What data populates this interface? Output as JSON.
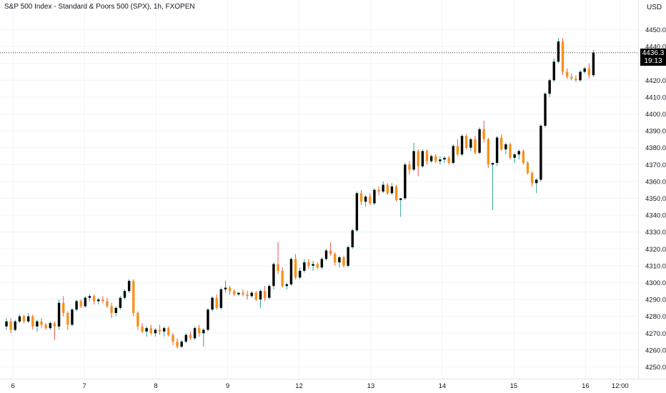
{
  "header": {
    "title": "S&P 500 Index - Standard & Poors 500 (SPX), 1h, FXOPEN",
    "currency": "USD"
  },
  "price_tag": {
    "price": "4436.3",
    "countdown": "19:13"
  },
  "colors": {
    "up": "#000000",
    "down": "#f7931a",
    "wick_up": "#26a69a",
    "wick_down": "#ef5350",
    "grid": "#f0f3fa",
    "axis_text": "#131722",
    "crosshair": "#131722"
  },
  "chart_data": {
    "type": "candlestick",
    "title": "S&P 500 Index - Standard & Poors 500 (SPX), 1h, FXOPEN",
    "xlabel": "",
    "ylabel": "",
    "ylim": [
      4247,
      4456
    ],
    "y_ticks": [
      4250,
      4260,
      4270,
      4280,
      4290,
      4300,
      4310,
      4320,
      4330,
      4340,
      4350,
      4360,
      4370,
      4380,
      4390,
      4400,
      4410,
      4420,
      4430,
      4440,
      4450
    ],
    "x_ticks": [
      {
        "label": "6",
        "index": 1.5
      },
      {
        "label": "7",
        "index": 17.8
      },
      {
        "label": "8",
        "index": 34.1
      },
      {
        "label": "9",
        "index": 50.5
      },
      {
        "label": "12",
        "index": 66.8
      },
      {
        "label": "13",
        "index": 83.2
      },
      {
        "label": "14",
        "index": 99.5
      },
      {
        "label": "15",
        "index": 115.8
      },
      {
        "label": "16",
        "index": 132.2
      },
      {
        "label": "12:00",
        "index": 140.1
      }
    ],
    "last_price": 4436.3,
    "grid": true,
    "candles": [
      [
        4274,
        4279,
        4272,
        4277
      ],
      [
        4277,
        4279,
        4270,
        4272
      ],
      [
        4272,
        4278,
        4271,
        4277
      ],
      [
        4277,
        4281,
        4276,
        4280
      ],
      [
        4280,
        4281,
        4276,
        4277
      ],
      [
        4277,
        4282,
        4276,
        4280
      ],
      [
        4280,
        4281,
        4272,
        4274
      ],
      [
        4274,
        4278,
        4271,
        4277
      ],
      [
        4277,
        4279,
        4273,
        4275
      ],
      [
        4275,
        4276,
        4272,
        4273
      ],
      [
        4273,
        4277,
        4272,
        4276
      ],
      [
        4276,
        4277,
        4266,
        4274
      ],
      [
        4274,
        4290,
        4272,
        4288
      ],
      [
        4288,
        4292,
        4280,
        4282
      ],
      [
        4282,
        4283,
        4272,
        4275
      ],
      [
        4275,
        4285,
        4274,
        4284
      ],
      [
        4284,
        4290,
        4283,
        4289
      ],
      [
        4289,
        4290,
        4285,
        4286
      ],
      [
        4286,
        4292,
        4285,
        4291
      ],
      [
        4291,
        4293,
        4289,
        4292
      ],
      [
        4292,
        4293,
        4287,
        4289
      ],
      [
        4289,
        4291,
        4287,
        4290
      ],
      [
        4290,
        4292,
        4288,
        4289
      ],
      [
        4289,
        4291,
        4285,
        4286
      ],
      [
        4286,
        4288,
        4279,
        4282
      ],
      [
        4282,
        4286,
        4280,
        4285
      ],
      [
        4285,
        4292,
        4284,
        4291
      ],
      [
        4291,
        4296,
        4290,
        4295
      ],
      [
        4295,
        4302,
        4294,
        4301
      ],
      [
        4301,
        4302,
        4280,
        4282
      ],
      [
        4282,
        4283,
        4272,
        4274
      ],
      [
        4274,
        4276,
        4270,
        4271
      ],
      [
        4271,
        4274,
        4268,
        4273
      ],
      [
        4273,
        4275,
        4269,
        4270
      ],
      [
        4270,
        4273,
        4268,
        4272
      ],
      [
        4272,
        4275,
        4269,
        4271
      ],
      [
        4271,
        4274,
        4268,
        4273
      ],
      [
        4273,
        4274,
        4268,
        4269
      ],
      [
        4269,
        4270,
        4263,
        4265
      ],
      [
        4265,
        4267,
        4261,
        4262
      ],
      [
        4262,
        4266,
        4261,
        4265
      ],
      [
        4265,
        4270,
        4264,
        4269
      ],
      [
        4269,
        4271,
        4266,
        4267
      ],
      [
        4267,
        4274,
        4266,
        4273
      ],
      [
        4273,
        4275,
        4268,
        4270
      ],
      [
        4270,
        4273,
        4262,
        4272
      ],
      [
        4272,
        4285,
        4271,
        4284
      ],
      [
        4284,
        4292,
        4283,
        4291
      ],
      [
        4291,
        4293,
        4284,
        4285
      ],
      [
        4285,
        4297,
        4284,
        4296
      ],
      [
        4296,
        4301,
        4294,
        4297
      ],
      [
        4297,
        4298,
        4293,
        4295
      ],
      [
        4295,
        4296,
        4292,
        4293
      ],
      [
        4293,
        4294,
        4292,
        4294
      ],
      [
        4294,
        4296,
        4292,
        4293
      ],
      [
        4293,
        4295,
        4290,
        4292
      ],
      [
        4292,
        4295,
        4291,
        4294
      ],
      [
        4294,
        4295,
        4289,
        4290
      ],
      [
        4290,
        4296,
        4285,
        4295
      ],
      [
        4295,
        4298,
        4289,
        4291
      ],
      [
        4291,
        4299,
        4290,
        4298
      ],
      [
        4298,
        4312,
        4296,
        4311
      ],
      [
        4311,
        4324,
        4305,
        4307
      ],
      [
        4307,
        4309,
        4297,
        4298
      ],
      [
        4298,
        4300,
        4296,
        4299
      ],
      [
        4299,
        4315,
        4298,
        4314
      ],
      [
        4314,
        4317,
        4302,
        4303
      ],
      [
        4303,
        4309,
        4302,
        4307
      ],
      [
        4307,
        4314,
        4306,
        4312
      ],
      [
        4312,
        4314,
        4308,
        4310
      ],
      [
        4310,
        4313,
        4307,
        4311
      ],
      [
        4311,
        4312,
        4308,
        4309
      ],
      [
        4309,
        4315,
        4308,
        4314
      ],
      [
        4314,
        4320,
        4313,
        4319
      ],
      [
        4319,
        4324,
        4316,
        4317
      ],
      [
        4317,
        4318,
        4310,
        4312
      ],
      [
        4312,
        4316,
        4309,
        4315
      ],
      [
        4315,
        4316,
        4309,
        4310
      ],
      [
        4310,
        4322,
        4309,
        4321
      ],
      [
        4321,
        4332,
        4320,
        4331
      ],
      [
        4331,
        4354,
        4330,
        4353
      ],
      [
        4353,
        4355,
        4346,
        4348
      ],
      [
        4348,
        4352,
        4345,
        4351
      ],
      [
        4351,
        4353,
        4346,
        4347
      ],
      [
        4347,
        4356,
        4346,
        4355
      ],
      [
        4355,
        4357,
        4352,
        4354
      ],
      [
        4354,
        4360,
        4353,
        4358
      ],
      [
        4358,
        4359,
        4352,
        4353
      ],
      [
        4353,
        4359,
        4352,
        4357
      ],
      [
        4357,
        4358,
        4348,
        4349
      ],
      [
        4349,
        4350,
        4339,
        4350
      ],
      [
        4350,
        4371,
        4349,
        4370
      ],
      [
        4370,
        4372,
        4364,
        4367
      ],
      [
        4367,
        4383,
        4366,
        4378
      ],
      [
        4378,
        4379,
        4363,
        4369
      ],
      [
        4369,
        4379,
        4368,
        4378
      ],
      [
        4378,
        4379,
        4370,
        4372
      ],
      [
        4372,
        4376,
        4371,
        4375
      ],
      [
        4375,
        4376,
        4371,
        4372
      ],
      [
        4372,
        4375,
        4370,
        4373
      ],
      [
        4373,
        4375,
        4371,
        4374
      ],
      [
        4374,
        4375,
        4370,
        4371
      ],
      [
        4371,
        4382,
        4370,
        4381
      ],
      [
        4381,
        4385,
        4375,
        4376
      ],
      [
        4376,
        4388,
        4375,
        4387
      ],
      [
        4387,
        4388,
        4379,
        4380
      ],
      [
        4380,
        4386,
        4378,
        4385
      ],
      [
        4385,
        4387,
        4376,
        4377
      ],
      [
        4377,
        4392,
        4376,
        4391
      ],
      [
        4391,
        4396,
        4383,
        4385
      ],
      [
        4385,
        4386,
        4368,
        4370
      ],
      [
        4370,
        4371,
        4343,
        4371
      ],
      [
        4371,
        4387,
        4369,
        4386
      ],
      [
        4386,
        4388,
        4378,
        4379
      ],
      [
        4379,
        4383,
        4376,
        4382
      ],
      [
        4382,
        4383,
        4373,
        4374
      ],
      [
        4374,
        4377,
        4371,
        4376
      ],
      [
        4376,
        4379,
        4373,
        4378
      ],
      [
        4378,
        4379,
        4370,
        4371
      ],
      [
        4371,
        4372,
        4364,
        4365
      ],
      [
        4365,
        4366,
        4357,
        4359
      ],
      [
        4359,
        4362,
        4353,
        4361
      ],
      [
        4361,
        4394,
        4360,
        4393
      ],
      [
        4393,
        4413,
        4392,
        4412
      ],
      [
        4412,
        4421,
        4410,
        4420
      ],
      [
        4420,
        4433,
        4419,
        4431
      ],
      [
        4431,
        4445,
        4430,
        4443
      ],
      [
        4443,
        4445,
        4423,
        4425
      ],
      [
        4425,
        4427,
        4421,
        4422
      ],
      [
        4422,
        4424,
        4420,
        4421
      ],
      [
        4421,
        4423,
        4419,
        4420
      ],
      [
        4420,
        4426,
        4419,
        4425
      ],
      [
        4425,
        4428,
        4424,
        4427
      ],
      [
        4427,
        4430,
        4421,
        4423
      ],
      [
        4423,
        4438,
        4422,
        4436.3
      ]
    ]
  }
}
